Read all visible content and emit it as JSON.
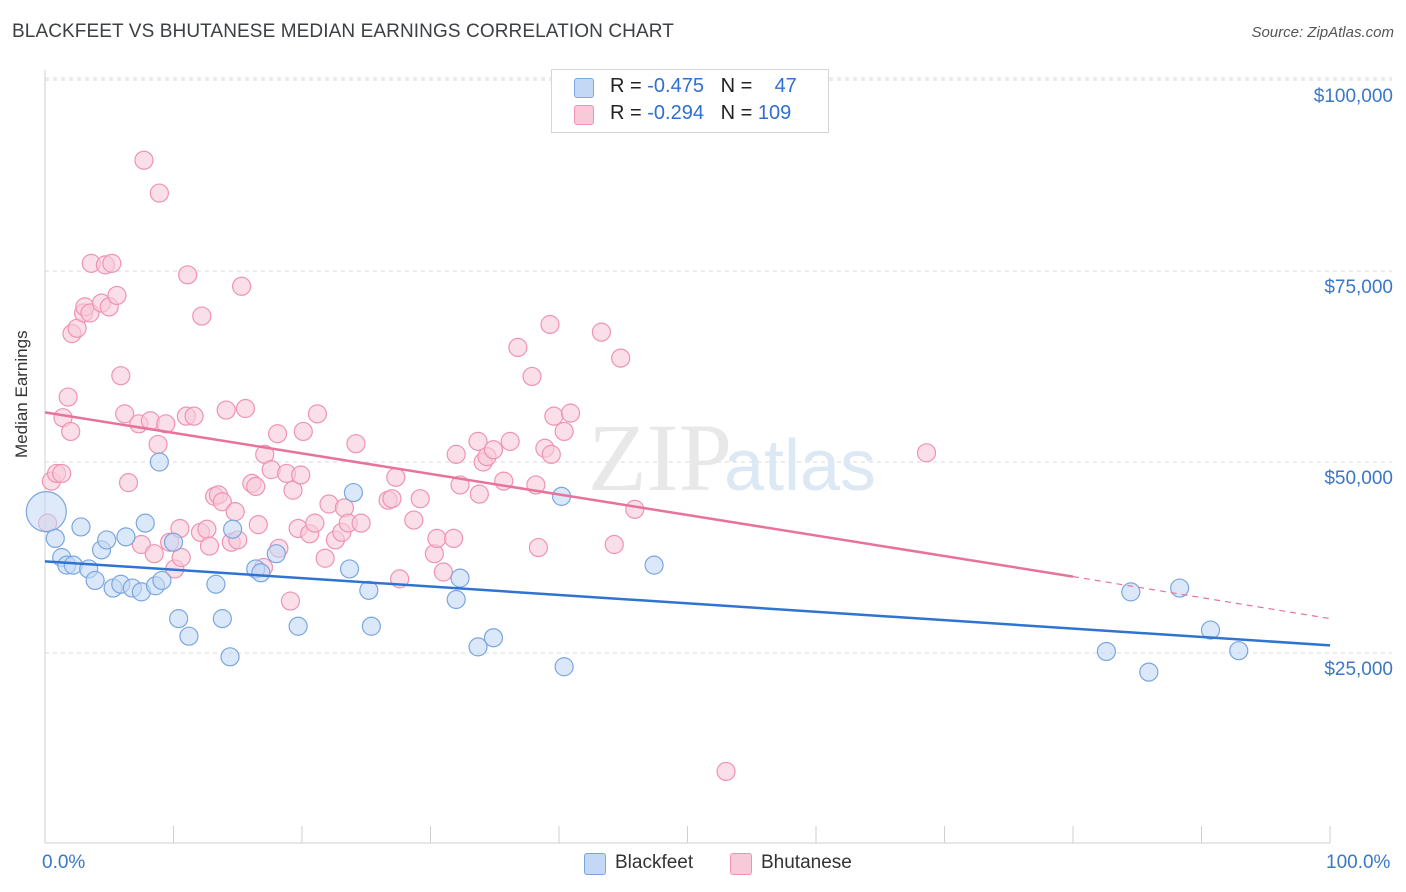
{
  "title": "BLACKFEET VS BHUTANESE MEDIAN EARNINGS CORRELATION CHART",
  "source": "Source: ZipAtlas.com",
  "watermark": {
    "zip": "ZIP",
    "atlas": "atlas"
  },
  "colors": {
    "blackfeet_fill": "#c3d8f5",
    "blackfeet_stroke": "#7aa6e0",
    "blackfeet_line": "#2f74d0",
    "bhutanese_fill": "#f8c9d8",
    "bhutanese_stroke": "#ef93b2",
    "bhutanese_line": "#e8739a",
    "tick_label": "#3a78c7",
    "grid": "#d9d9d9"
  },
  "legend": {
    "rows": [
      {
        "r_label": "R = ",
        "r_value": "-0.475",
        "n_label": "N = ",
        "n_value": "47"
      },
      {
        "r_label": "R = ",
        "r_value": "-0.294",
        "n_label": "N = ",
        "n_value": "109"
      }
    ]
  },
  "bottom_legend": [
    "Blackfeet",
    "Bhutanese"
  ],
  "chart_data": {
    "type": "scatter",
    "title": "BLACKFEET VS BHUTANESE MEDIAN EARNINGS CORRELATION CHART",
    "xlabel": "",
    "ylabel": "Median Earnings",
    "xlim": [
      0,
      100
    ],
    "ylim": [
      0,
      104000
    ],
    "x_tick_labels": [
      "0.0%",
      "100.0%"
    ],
    "y_ticks": [
      25000,
      50000,
      75000,
      100000
    ],
    "y_tick_labels": [
      "$25,000",
      "$50,000",
      "$75,000",
      "$100,000"
    ],
    "grid": "horizontal dashed",
    "legend_position": "top-center",
    "series": [
      {
        "name": "Blackfeet",
        "r": -0.475,
        "n": 47,
        "trend": {
          "x": [
            0,
            100
          ],
          "y": [
            37000,
            26000
          ]
        },
        "points": [
          [
            0.1,
            43500
          ],
          [
            0.8,
            40000
          ],
          [
            1.3,
            37500
          ],
          [
            1.7,
            36500
          ],
          [
            2.2,
            36500
          ],
          [
            2.8,
            41500
          ],
          [
            3.4,
            36000
          ],
          [
            3.9,
            34500
          ],
          [
            4.4,
            38500
          ],
          [
            4.8,
            39800
          ],
          [
            5.3,
            33500
          ],
          [
            5.9,
            34000
          ],
          [
            6.3,
            40200
          ],
          [
            6.8,
            33500
          ],
          [
            7.5,
            33000
          ],
          [
            7.8,
            42000
          ],
          [
            8.6,
            33800
          ],
          [
            9.1,
            34500
          ],
          [
            8.9,
            50000
          ],
          [
            10.0,
            39500
          ],
          [
            10.4,
            29500
          ],
          [
            11.2,
            27200
          ],
          [
            13.3,
            34000
          ],
          [
            13.8,
            29500
          ],
          [
            14.4,
            24500
          ],
          [
            14.6,
            41200
          ],
          [
            16.4,
            36000
          ],
          [
            16.8,
            35500
          ],
          [
            18.0,
            38000
          ],
          [
            19.7,
            28500
          ],
          [
            23.7,
            36000
          ],
          [
            24.0,
            46000
          ],
          [
            25.2,
            33200
          ],
          [
            25.4,
            28500
          ],
          [
            32.0,
            32000
          ],
          [
            32.3,
            34800
          ],
          [
            33.7,
            25800
          ],
          [
            34.9,
            27000
          ],
          [
            40.2,
            45500
          ],
          [
            40.4,
            23200
          ],
          [
            47.4,
            36500
          ],
          [
            82.6,
            25200
          ],
          [
            84.5,
            33000
          ],
          [
            85.9,
            22500
          ],
          [
            88.3,
            33500
          ],
          [
            90.7,
            28000
          ],
          [
            92.9,
            25300
          ]
        ]
      },
      {
        "name": "Bhutanese",
        "r": -0.294,
        "n": 109,
        "trend": {
          "x": [
            0,
            80
          ],
          "y": [
            56500,
            35000
          ]
        },
        "trend_dashed": {
          "x": [
            80,
            100
          ],
          "y": [
            35000,
            29500
          ]
        },
        "points": [
          [
            0.2,
            42000
          ],
          [
            0.5,
            47500
          ],
          [
            0.9,
            48500
          ],
          [
            1.3,
            48500
          ],
          [
            1.4,
            55800
          ],
          [
            1.8,
            58500
          ],
          [
            2.0,
            54000
          ],
          [
            2.1,
            66800
          ],
          [
            2.5,
            67500
          ],
          [
            3.0,
            69500
          ],
          [
            3.1,
            70300
          ],
          [
            3.5,
            69500
          ],
          [
            3.6,
            76000
          ],
          [
            4.4,
            70800
          ],
          [
            4.7,
            75800
          ],
          [
            5.0,
            70300
          ],
          [
            5.2,
            76000
          ],
          [
            5.6,
            71800
          ],
          [
            5.9,
            61300
          ],
          [
            6.2,
            56300
          ],
          [
            6.5,
            47300
          ],
          [
            7.3,
            55000
          ],
          [
            7.5,
            39200
          ],
          [
            7.7,
            89500
          ],
          [
            8.2,
            55400
          ],
          [
            8.5,
            38000
          ],
          [
            8.8,
            52300
          ],
          [
            8.9,
            85200
          ],
          [
            9.4,
            55000
          ],
          [
            9.7,
            39500
          ],
          [
            10.1,
            36000
          ],
          [
            10.5,
            41300
          ],
          [
            10.6,
            37500
          ],
          [
            11.1,
            74500
          ],
          [
            11.0,
            56000
          ],
          [
            11.6,
            56000
          ],
          [
            12.1,
            40800
          ],
          [
            12.2,
            69100
          ],
          [
            12.6,
            41200
          ],
          [
            12.8,
            39000
          ],
          [
            13.2,
            45500
          ],
          [
            13.5,
            45700
          ],
          [
            13.8,
            44800
          ],
          [
            14.1,
            56800
          ],
          [
            14.5,
            39500
          ],
          [
            14.8,
            43500
          ],
          [
            15.0,
            39800
          ],
          [
            15.3,
            73000
          ],
          [
            15.6,
            57000
          ],
          [
            16.1,
            47200
          ],
          [
            16.4,
            46800
          ],
          [
            16.6,
            41800
          ],
          [
            17.0,
            36200
          ],
          [
            17.1,
            51000
          ],
          [
            17.6,
            49000
          ],
          [
            18.1,
            53700
          ],
          [
            18.2,
            38700
          ],
          [
            18.8,
            48500
          ],
          [
            19.1,
            31800
          ],
          [
            19.3,
            46300
          ],
          [
            19.7,
            41300
          ],
          [
            19.9,
            48300
          ],
          [
            20.1,
            54000
          ],
          [
            20.6,
            40600
          ],
          [
            21.0,
            42000
          ],
          [
            21.2,
            56300
          ],
          [
            21.8,
            37400
          ],
          [
            22.1,
            44500
          ],
          [
            22.6,
            39800
          ],
          [
            23.1,
            40800
          ],
          [
            23.3,
            44000
          ],
          [
            23.6,
            42000
          ],
          [
            24.2,
            52400
          ],
          [
            24.6,
            42000
          ],
          [
            26.7,
            45000
          ],
          [
            27.0,
            45200
          ],
          [
            27.3,
            48000
          ],
          [
            27.6,
            34700
          ],
          [
            28.7,
            42400
          ],
          [
            29.2,
            45200
          ],
          [
            30.3,
            38000
          ],
          [
            30.5,
            40000
          ],
          [
            31.0,
            35600
          ],
          [
            31.8,
            40000
          ],
          [
            32.0,
            51000
          ],
          [
            32.3,
            47000
          ],
          [
            33.7,
            52700
          ],
          [
            33.8,
            45800
          ],
          [
            34.1,
            50000
          ],
          [
            34.4,
            50700
          ],
          [
            34.9,
            51600
          ],
          [
            35.7,
            47500
          ],
          [
            36.2,
            52700
          ],
          [
            36.8,
            65000
          ],
          [
            37.9,
            61200
          ],
          [
            38.2,
            47000
          ],
          [
            38.4,
            38800
          ],
          [
            38.9,
            51800
          ],
          [
            39.4,
            51000
          ],
          [
            39.3,
            68000
          ],
          [
            39.6,
            56000
          ],
          [
            40.4,
            54000
          ],
          [
            40.9,
            56400
          ],
          [
            43.3,
            67000
          ],
          [
            44.3,
            39200
          ],
          [
            44.8,
            63600
          ],
          [
            45.9,
            43800
          ],
          [
            53.0,
            9500
          ],
          [
            68.6,
            51200
          ]
        ]
      }
    ]
  }
}
